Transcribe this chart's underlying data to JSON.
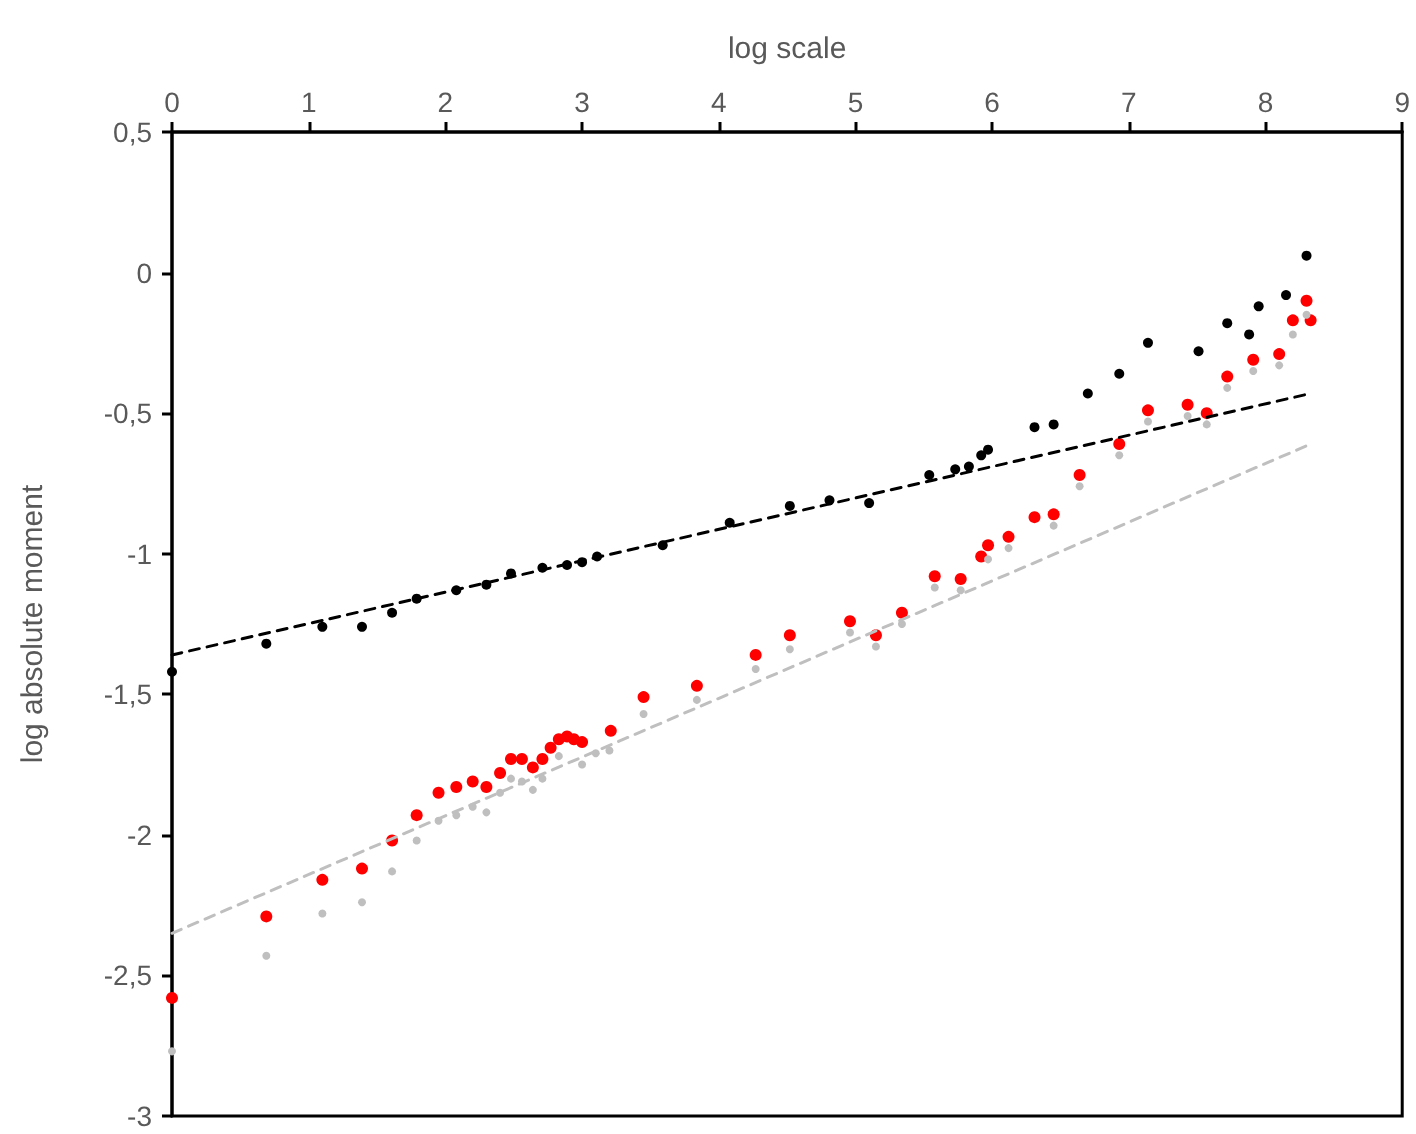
{
  "chart_data": {
    "type": "scatter",
    "xlabel": "log scale",
    "ylabel": "log absolute moment",
    "xlim": [
      0,
      9
    ],
    "xticks": [
      0,
      1,
      2,
      3,
      4,
      5,
      6,
      7,
      8,
      9
    ],
    "ylim": [
      -3,
      0.5
    ],
    "yticks": [
      -3,
      {
        "value": -2.5,
        "label": "-2,5"
      },
      -2,
      {
        "value": -1.5,
        "label": "-1,5"
      },
      -1,
      {
        "value": -0.5,
        "label": "-0,5"
      },
      0,
      {
        "value": 0.5,
        "label": "0,5"
      }
    ],
    "grid": false,
    "marker": "circle",
    "series": [
      {
        "color": "#000000",
        "x": [
          0,
          0.69,
          1.1,
          1.39,
          1.61,
          1.79,
          2.08,
          2.3,
          2.48,
          2.71,
          2.89,
          3.0,
          3.11,
          3.59,
          4.08,
          4.52,
          4.81,
          5.1,
          5.54,
          5.73,
          5.83,
          5.92,
          5.97,
          6.31,
          6.45,
          6.7,
          6.93,
          7.14,
          7.51,
          7.72,
          7.88,
          7.95,
          8.15,
          8.3
        ],
        "values": [
          -1.42,
          -1.32,
          -1.26,
          -1.26,
          -1.21,
          -1.16,
          -1.13,
          -1.11,
          -1.07,
          -1.05,
          -1.04,
          -1.03,
          -1.01,
          -0.97,
          -0.89,
          -0.83,
          -0.81,
          -0.82,
          -0.72,
          -0.7,
          -0.69,
          -0.65,
          -0.63,
          -0.55,
          -0.54,
          -0.43,
          -0.36,
          -0.25,
          -0.28,
          -0.18,
          -0.22,
          -0.12,
          -0.08,
          0.06
        ]
      },
      {
        "color": "#ff0000",
        "x": [
          0,
          0.69,
          1.1,
          1.39,
          1.61,
          1.79,
          1.95,
          2.08,
          2.2,
          2.3,
          2.4,
          2.48,
          2.56,
          2.64,
          2.71,
          2.77,
          2.83,
          2.89,
          2.94,
          3.0,
          3.21,
          3.45,
          3.84,
          4.27,
          4.52,
          4.96,
          5.15,
          5.34,
          5.58,
          5.77,
          5.92,
          5.97,
          6.12,
          6.31,
          6.45,
          6.64,
          6.93,
          7.14,
          7.43,
          7.57,
          7.72,
          7.91,
          8.1,
          8.2,
          8.3,
          8.33
        ],
        "values": [
          -2.58,
          -2.29,
          -2.16,
          -2.12,
          -2.02,
          -1.93,
          -1.85,
          -1.83,
          -1.81,
          -1.83,
          -1.78,
          -1.73,
          -1.73,
          -1.76,
          -1.73,
          -1.69,
          -1.66,
          -1.65,
          -1.66,
          -1.67,
          -1.63,
          -1.51,
          -1.47,
          -1.36,
          -1.29,
          -1.24,
          -1.29,
          -1.21,
          -1.08,
          -1.09,
          -1.01,
          -0.97,
          -0.94,
          -0.87,
          -0.86,
          -0.72,
          -0.61,
          -0.49,
          -0.47,
          -0.5,
          -0.37,
          -0.31,
          -0.29,
          -0.17,
          -0.1,
          -0.17
        ]
      },
      {
        "color": "#bfbfbf",
        "x": [
          0,
          0.69,
          1.1,
          1.39,
          1.61,
          1.79,
          1.95,
          2.08,
          2.2,
          2.3,
          2.4,
          2.48,
          2.56,
          2.64,
          2.71,
          2.83,
          3.0,
          3.1,
          3.2,
          3.45,
          3.84,
          4.27,
          4.52,
          4.96,
          5.15,
          5.34,
          5.58,
          5.77,
          5.97,
          6.12,
          6.45,
          6.64,
          6.93,
          7.14,
          7.43,
          7.57,
          7.72,
          7.91,
          8.1,
          8.2,
          8.3
        ],
        "values": [
          -2.77,
          -2.43,
          -2.28,
          -2.24,
          -2.13,
          -2.02,
          -1.95,
          -1.93,
          -1.9,
          -1.92,
          -1.85,
          -1.8,
          -1.81,
          -1.84,
          -1.8,
          -1.72,
          -1.75,
          -1.71,
          -1.7,
          -1.57,
          -1.52,
          -1.41,
          -1.34,
          -1.28,
          -1.33,
          -1.25,
          -1.12,
          -1.13,
          -1.02,
          -0.98,
          -0.9,
          -0.76,
          -0.65,
          -0.53,
          -0.51,
          -0.54,
          -0.41,
          -0.35,
          -0.33,
          -0.22,
          -0.15
        ]
      },
      {
        "type": "line",
        "color": "#000000",
        "line_style": "dashed",
        "marker": "none",
        "x": [
          0,
          8.33
        ],
        "values": [
          -1.36,
          -0.43
        ]
      },
      {
        "type": "line",
        "color": "#bfbfbf",
        "line_style": "dashed",
        "marker": "none",
        "x": [
          0,
          8.33
        ],
        "values": [
          -2.35,
          -0.61
        ]
      }
    ]
  }
}
